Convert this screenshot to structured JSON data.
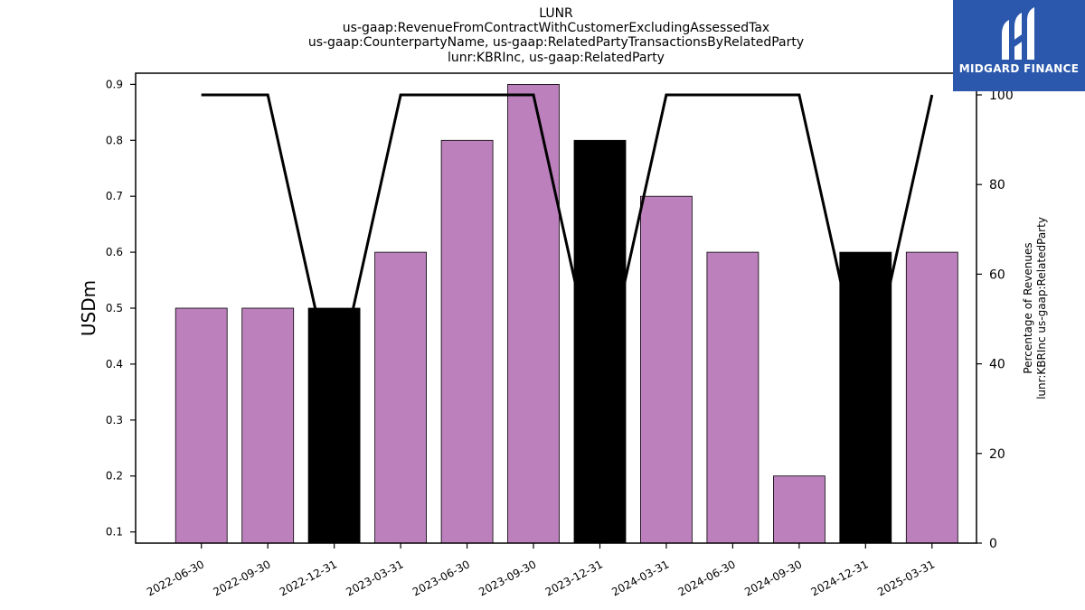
{
  "chart_data": {
    "type": "bar",
    "title_lines": [
      "LUNR",
      "us-gaap:RevenueFromContractWithCustomerExcludingAssessedTax",
      "us-gaap:CounterpartyName, us-gaap:RelatedPartyTransactionsByRelatedParty",
      "lunr:KBRInc, us-gaap:RelatedParty"
    ],
    "ylabel": "USDm",
    "ylabel_right_lines": [
      "Percentage of Revenues",
      "lunr:KBRInc us-gaap:RelatedParty"
    ],
    "categories": [
      "2022-06-30",
      "2022-09-30",
      "2022-12-31",
      "2023-03-31",
      "2023-06-30",
      "2023-09-30",
      "2023-12-31",
      "2024-03-31",
      "2024-06-30",
      "2024-09-30",
      "2024-12-31",
      "2025-03-31"
    ],
    "series": [
      {
        "values": [
          0.5,
          0.5,
          0.5,
          0.6,
          0.8,
          0.9,
          0.8,
          0.7,
          0.6,
          0.2,
          0.6,
          0.6
        ],
        "colors": [
          "#bc80bd",
          "#bc80bd",
          "#000000",
          "#bc80bd",
          "#bc80bd",
          "#bc80bd",
          "#000000",
          "#bc80bd",
          "#bc80bd",
          "#bc80bd",
          "#000000",
          "#bc80bd"
        ]
      },
      {
        "type": "line",
        "axis": "right",
        "values": [
          100,
          100,
          33.3,
          100,
          100,
          100,
          33.3,
          100,
          100,
          100,
          33.3,
          100
        ],
        "color": "#000000"
      }
    ],
    "ylim": [
      0.08,
      0.92
    ],
    "yticks": [
      "0.1",
      "0.2",
      "0.3",
      "0.4",
      "0.5",
      "0.6",
      "0.7",
      "0.8",
      "0.9"
    ],
    "y2lim": [
      0,
      100
    ],
    "y2ticks": [
      "0",
      "20",
      "40",
      "60",
      "80",
      "100"
    ],
    "grid": false
  },
  "logo": {
    "text": "MIDGARD FINANCE",
    "color": "#2b58ac"
  }
}
